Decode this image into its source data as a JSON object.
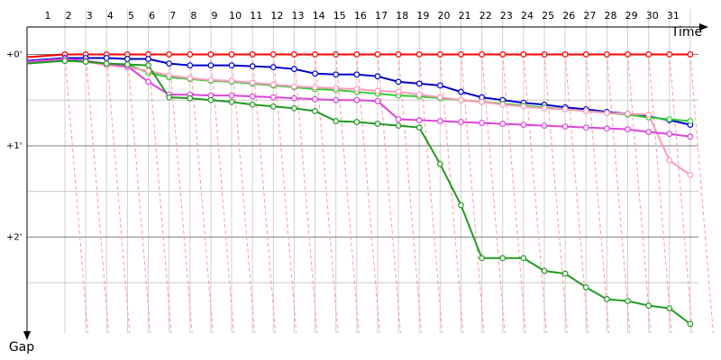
{
  "chart_data": {
    "type": "line",
    "x_label": "Time",
    "y_label": "Gap",
    "categories": [
      "1",
      "2",
      "3",
      "4",
      "5",
      "6",
      "7",
      "8",
      "9",
      "10",
      "11",
      "12",
      "13",
      "14",
      "15",
      "16",
      "17",
      "18",
      "19",
      "20",
      "21",
      "22",
      "23",
      "24",
      "25",
      "26",
      "27",
      "28",
      "29",
      "30",
      "31"
    ],
    "ylim": [
      -0.3,
      3.05
    ],
    "yticks": [
      {
        "value": 0,
        "label": "+0'"
      },
      {
        "value": 1,
        "label": "+1'"
      },
      {
        "value": 2,
        "label": "+2'"
      }
    ],
    "minor_yticks": [
      0.5,
      1.5,
      2.5
    ],
    "grid": true,
    "series": [
      {
        "color": "#ff0000",
        "values": [
          0,
          0,
          0,
          0,
          0,
          0,
          0,
          0,
          0,
          0,
          0,
          0,
          0,
          0,
          0,
          0,
          0,
          0,
          0,
          0,
          0,
          0,
          0,
          0,
          0,
          0,
          0,
          0,
          0,
          0,
          0
        ]
      },
      {
        "color": "#0000cc",
        "values": [
          0.04,
          0.04,
          0.04,
          0.05,
          0.05,
          0.1,
          0.12,
          0.12,
          0.12,
          0.13,
          0.14,
          0.16,
          0.21,
          0.22,
          0.22,
          0.24,
          0.3,
          0.32,
          0.34,
          0.41,
          0.47,
          0.5,
          0.53,
          0.55,
          0.58,
          0.6,
          0.63,
          0.65,
          0.68,
          0.72,
          0.77
        ]
      },
      {
        "color": "#33cc33",
        "values": [
          0.07,
          0.08,
          0.1,
          0.11,
          0.2,
          0.25,
          0.27,
          0.29,
          0.3,
          0.32,
          0.34,
          0.36,
          0.38,
          0.39,
          0.41,
          0.43,
          0.45,
          0.46,
          0.48,
          0.5,
          0.52,
          0.54,
          0.56,
          0.58,
          0.6,
          0.62,
          0.64,
          0.66,
          0.69,
          0.71,
          0.73
        ]
      },
      {
        "color": "#ff99bb",
        "values": [
          0.05,
          0.08,
          0.12,
          0.14,
          0.18,
          0.23,
          0.26,
          0.28,
          0.29,
          0.31,
          0.33,
          0.35,
          0.36,
          0.37,
          0.38,
          0.4,
          0.41,
          0.44,
          0.47,
          0.5,
          0.52,
          0.55,
          0.57,
          0.59,
          0.6,
          0.62,
          0.64,
          0.65,
          0.66,
          1.16,
          1.32
        ]
      },
      {
        "color": "#dd44dd",
        "values": [
          0.05,
          0.07,
          0.1,
          0.13,
          0.3,
          0.44,
          0.44,
          0.45,
          0.45,
          0.46,
          0.47,
          0.48,
          0.49,
          0.5,
          0.5,
          0.51,
          0.71,
          0.72,
          0.73,
          0.74,
          0.75,
          0.76,
          0.77,
          0.78,
          0.79,
          0.8,
          0.81,
          0.82,
          0.85,
          0.87,
          0.9
        ]
      },
      {
        "color": "#229922",
        "values": [
          0.07,
          0.08,
          0.1,
          0.11,
          0.12,
          0.47,
          0.48,
          0.5,
          0.52,
          0.55,
          0.57,
          0.59,
          0.62,
          0.73,
          0.74,
          0.76,
          0.78,
          0.8,
          1.2,
          1.65,
          2.23,
          2.23,
          2.23,
          2.37,
          2.4,
          2.55,
          2.68,
          2.7,
          2.75,
          2.78,
          2.95
        ]
      }
    ]
  }
}
